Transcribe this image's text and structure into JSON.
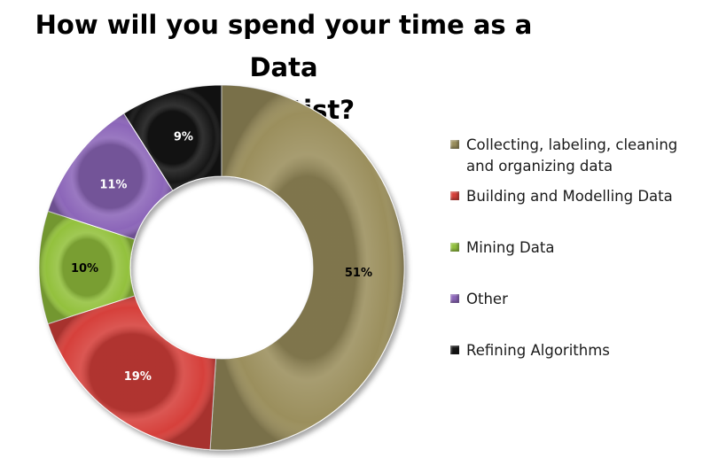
{
  "chart_data": {
    "type": "pie",
    "donut": true,
    "title": "How will you spend your time as a Data Scientist?",
    "title_lines": [
      "How will you spend your time as a Data",
      "Scientist?"
    ],
    "categories": [
      "Collecting, labeling, cleaning and organizing data",
      "Building and  Modelling Data",
      "Mining Data",
      "Other",
      "Refining Algorithms"
    ],
    "legend_lines": [
      [
        "Collecting, labeling, cleaning",
        "and organizing data"
      ],
      [
        "Building and  Modelling Data"
      ],
      [
        "Mining Data"
      ],
      [
        "Other"
      ],
      [
        "Refining Algorithms"
      ]
    ],
    "values": [
      51,
      19,
      10,
      11,
      9
    ],
    "data_labels": [
      "51%",
      "19%",
      "10%",
      "11%",
      "9%"
    ],
    "colors": [
      "#9b8f5d",
      "#d6403a",
      "#93c13e",
      "#8c66b9",
      "#161616"
    ],
    "label_colors": [
      "#000000",
      "#ffffff",
      "#000000",
      "#ffffff",
      "#ffffff"
    ],
    "legend_position": "right"
  }
}
